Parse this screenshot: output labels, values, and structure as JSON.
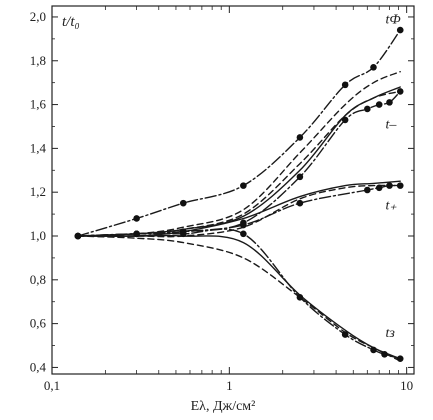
{
  "chart_data": {
    "type": "line",
    "title": "",
    "ylabel": "t/t₀",
    "xlabel": "Eλ, Дж/см²",
    "xscale": "log",
    "xlim": [
      0.1,
      11
    ],
    "ylim": [
      0.37,
      2.05
    ],
    "x_ticks": [
      {
        "value": 0.1,
        "label": "0,1"
      },
      {
        "value": 1,
        "label": "1"
      },
      {
        "value": 10,
        "label": "10"
      }
    ],
    "y_ticks": [
      {
        "value": 0.4,
        "label": "0,4"
      },
      {
        "value": 0.6,
        "label": "0,6"
      },
      {
        "value": 0.8,
        "label": "0,8"
      },
      {
        "value": 1.0,
        "label": "1,0"
      },
      {
        "value": 1.2,
        "label": "1,2"
      },
      {
        "value": 1.4,
        "label": "1,4"
      },
      {
        "value": 1.6,
        "label": "1,6"
      },
      {
        "value": 1.8,
        "label": "1,8"
      },
      {
        "value": 2.0,
        "label": "2,0"
      }
    ],
    "grid": false,
    "series": [
      {
        "name": "tФ",
        "style": "dash-dot",
        "markers": true,
        "points": [
          [
            0.14,
            1.0
          ],
          [
            0.3,
            1.08
          ],
          [
            0.55,
            1.15
          ],
          [
            1.2,
            1.23
          ],
          [
            2.5,
            1.45
          ],
          [
            4.5,
            1.69
          ],
          [
            6.5,
            1.77
          ],
          [
            9.2,
            1.94
          ]
        ]
      },
      {
        "name": "t–",
        "style": "dash-dot",
        "markers": true,
        "points": [
          [
            0.14,
            1.0
          ],
          [
            0.3,
            1.01
          ],
          [
            0.55,
            1.02
          ],
          [
            1.2,
            1.06
          ],
          [
            2.5,
            1.27
          ],
          [
            4.5,
            1.53
          ],
          [
            6.0,
            1.58
          ],
          [
            7.0,
            1.6
          ],
          [
            8.0,
            1.61
          ],
          [
            9.2,
            1.66
          ]
        ]
      },
      {
        "name": "t₊",
        "style": "dash-dot",
        "markers": true,
        "points": [
          [
            0.14,
            1.0
          ],
          [
            0.3,
            1.01
          ],
          [
            0.55,
            1.02
          ],
          [
            1.2,
            1.05
          ],
          [
            2.5,
            1.15
          ],
          [
            6.0,
            1.21
          ],
          [
            7.0,
            1.22
          ],
          [
            8.0,
            1.23
          ],
          [
            9.2,
            1.23
          ]
        ]
      },
      {
        "name": "tз",
        "style": "dash-dot",
        "markers": true,
        "points": [
          [
            0.14,
            1.0
          ],
          [
            0.3,
            1.01
          ],
          [
            0.55,
            1.01
          ],
          [
            1.2,
            1.01
          ],
          [
            2.5,
            0.72
          ],
          [
            4.5,
            0.55
          ],
          [
            6.5,
            0.48
          ],
          [
            7.5,
            0.46
          ],
          [
            9.2,
            0.44
          ]
        ]
      },
      {
        "name": "",
        "style": "solid",
        "markers": false,
        "points": [
          [
            0.14,
            1.0
          ],
          [
            0.3,
            1.01
          ],
          [
            0.55,
            1.03
          ],
          [
            1.2,
            1.09
          ],
          [
            2.5,
            1.3
          ],
          [
            4.5,
            1.55
          ],
          [
            6.5,
            1.63
          ],
          [
            9.2,
            1.68
          ]
        ]
      },
      {
        "name": "",
        "style": "solid",
        "markers": false,
        "points": [
          [
            0.14,
            1.0
          ],
          [
            0.3,
            1.0
          ],
          [
            0.55,
            1.02
          ],
          [
            1.2,
            1.08
          ],
          [
            2.5,
            1.18
          ],
          [
            4.5,
            1.23
          ],
          [
            6.5,
            1.24
          ],
          [
            9.2,
            1.25
          ]
        ]
      },
      {
        "name": "",
        "style": "solid",
        "markers": false,
        "points": [
          [
            0.14,
            1.0
          ],
          [
            0.3,
            1.0
          ],
          [
            0.55,
            1.0
          ],
          [
            1.2,
            0.97
          ],
          [
            2.5,
            0.73
          ],
          [
            4.5,
            0.57
          ],
          [
            6.5,
            0.49
          ],
          [
            9.2,
            0.44
          ]
        ]
      },
      {
        "name": "",
        "style": "dashed",
        "markers": false,
        "points": [
          [
            0.14,
            1.0
          ],
          [
            0.3,
            1.01
          ],
          [
            0.55,
            1.04
          ],
          [
            1.2,
            1.12
          ],
          [
            2.5,
            1.38
          ],
          [
            4.5,
            1.6
          ],
          [
            6.5,
            1.7
          ],
          [
            9.2,
            1.75
          ]
        ]
      },
      {
        "name": "",
        "style": "dashed",
        "markers": false,
        "points": [
          [
            0.14,
            1.0
          ],
          [
            0.3,
            1.01
          ],
          [
            0.55,
            1.03
          ],
          [
            1.2,
            1.1
          ],
          [
            2.5,
            1.33
          ],
          [
            4.5,
            1.55
          ],
          [
            6.5,
            1.63
          ],
          [
            9.2,
            1.66
          ]
        ]
      },
      {
        "name": "",
        "style": "dashed",
        "markers": false,
        "points": [
          [
            0.14,
            1.0
          ],
          [
            0.3,
            1.0
          ],
          [
            0.55,
            1.0
          ],
          [
            1.2,
            1.04
          ],
          [
            2.5,
            1.17
          ],
          [
            4.5,
            1.22
          ],
          [
            6.5,
            1.23
          ],
          [
            9.2,
            1.23
          ]
        ]
      },
      {
        "name": "",
        "style": "dashed",
        "markers": false,
        "points": [
          [
            0.14,
            1.0
          ],
          [
            0.3,
            0.99
          ],
          [
            0.55,
            0.97
          ],
          [
            1.2,
            0.9
          ],
          [
            2.5,
            0.72
          ],
          [
            4.5,
            0.56
          ],
          [
            6.5,
            0.49
          ],
          [
            9.2,
            0.43
          ]
        ]
      }
    ],
    "series_labels": [
      {
        "series": 0,
        "text": "tФ",
        "x": 7.6,
        "y": 1.97
      },
      {
        "series": 1,
        "text": "t–",
        "x": 7.6,
        "y": 1.49
      },
      {
        "series": 2,
        "text": "t₊",
        "x": 7.6,
        "y": 1.12
      },
      {
        "series": 3,
        "text": "tз",
        "x": 7.6,
        "y": 0.54
      }
    ]
  }
}
